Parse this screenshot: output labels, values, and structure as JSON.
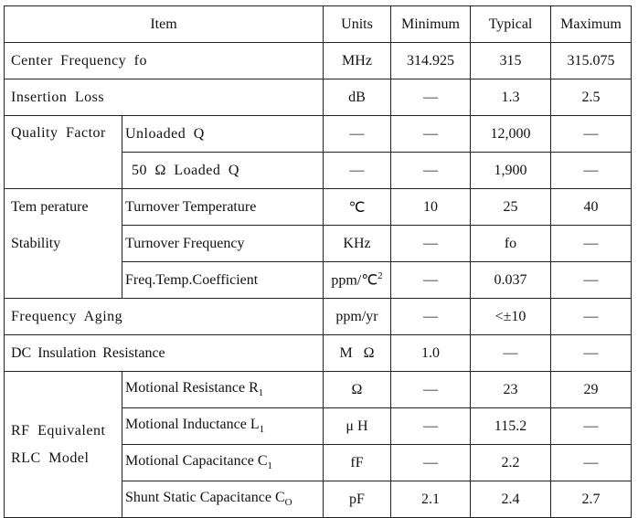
{
  "header": {
    "item": "Item",
    "units": "Units",
    "minimum": "Minimum",
    "typical": "Typical",
    "maximum": "Maximum"
  },
  "rows": {
    "center_frequency": {
      "item": "Center  Frequency  fo",
      "units": "MHz",
      "min": "314.925",
      "typ": "315",
      "max": "315.075"
    },
    "insertion_loss": {
      "item": "Insertion  Loss",
      "units": "dB",
      "min": "—",
      "typ": "1.3",
      "max": "2.5"
    },
    "quality_factor": {
      "group": "Quality  Factor",
      "unloaded": {
        "item": "Unloaded  Q",
        "units": "—",
        "min": "—",
        "typ": "12,000",
        "max": "—"
      },
      "loaded": {
        "item": "50 Ω  Loaded  Q",
        "units": "—",
        "min": "—",
        "typ": "1,900",
        "max": "—"
      }
    },
    "temperature_stability": {
      "group_line1": "Tem perature",
      "group_line2": "Stability",
      "turnover_temp": {
        "item": "Turnover Temperature",
        "units": "℃",
        "min": "10",
        "typ": "25",
        "max": "40"
      },
      "turnover_freq": {
        "item": "Turnover Frequency",
        "units": "KHz",
        "min": "—",
        "typ": "fo",
        "max": "—"
      },
      "temp_coeff": {
        "item": "Freq.Temp.Coefficient",
        "units": "ppm/℃",
        "units_sup": "2",
        "min": "—",
        "typ": "0.037",
        "max": "—"
      }
    },
    "frequency_aging": {
      "item": "Frequency  Aging",
      "units": "ppm/yr",
      "min": "—",
      "typ": "<±10",
      "max": "—"
    },
    "dc_insulation": {
      "item": "DC  Insulation Resistance",
      "units": "M   Ω",
      "min": "1.0",
      "typ": "—",
      "max": "—"
    },
    "rlc_model": {
      "group_line1": "RF  Equivalent",
      "group_line2": "RLC  Model",
      "r1": {
        "item": "Motional Resistance R",
        "sub": "1",
        "units": "Ω",
        "min": "—",
        "typ": "23",
        "max": "29"
      },
      "l1": {
        "item": "Motional Inductance L",
        "sub": "1",
        "units": "μ H",
        "min": "—",
        "typ": "115.2",
        "max": "—"
      },
      "c1": {
        "item": "Motional Capacitance C",
        "sub": "1",
        "units": "fF",
        "min": "—",
        "typ": "2.2",
        "max": "—"
      },
      "c0": {
        "item": "Shunt Static Capacitance C",
        "sub": "O",
        "units": "pF",
        "min": "2.1",
        "typ": "2.4",
        "max": "2.7"
      }
    }
  }
}
